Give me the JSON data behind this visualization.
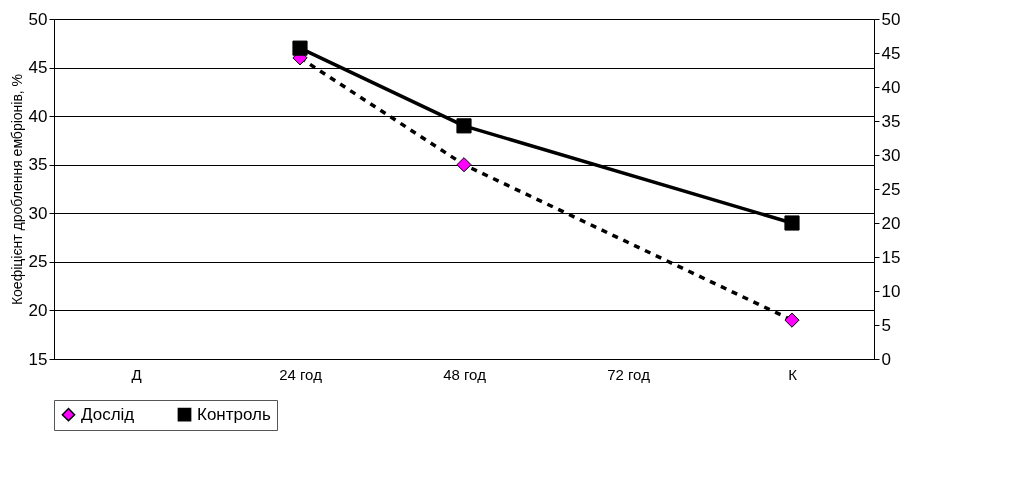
{
  "chart_data": {
    "type": "line",
    "ylabel": "Коефіцієнт дроблення ембріонів, %",
    "categories": [
      "Д",
      "24 год",
      "48 год",
      "72 год",
      "К"
    ],
    "series": [
      {
        "name": "Дослід",
        "color": "#ff00ff",
        "values": [
          null,
          46,
          35,
          null,
          19
        ],
        "marker": "diamond",
        "line_style": "dashed"
      },
      {
        "name": "Контроль",
        "color": "#000000",
        "values": [
          null,
          47,
          39,
          null,
          29
        ],
        "marker": "square",
        "line_style": "solid"
      }
    ],
    "ylim": [
      15,
      50
    ],
    "yticks": [
      15,
      20,
      25,
      30,
      35,
      40,
      45,
      50
    ],
    "y2lim": [
      0,
      50
    ],
    "y2ticks": [
      0,
      5,
      10,
      15,
      20,
      25,
      30,
      35,
      40,
      45,
      50
    ],
    "grid": "y",
    "legend": "bottom"
  }
}
